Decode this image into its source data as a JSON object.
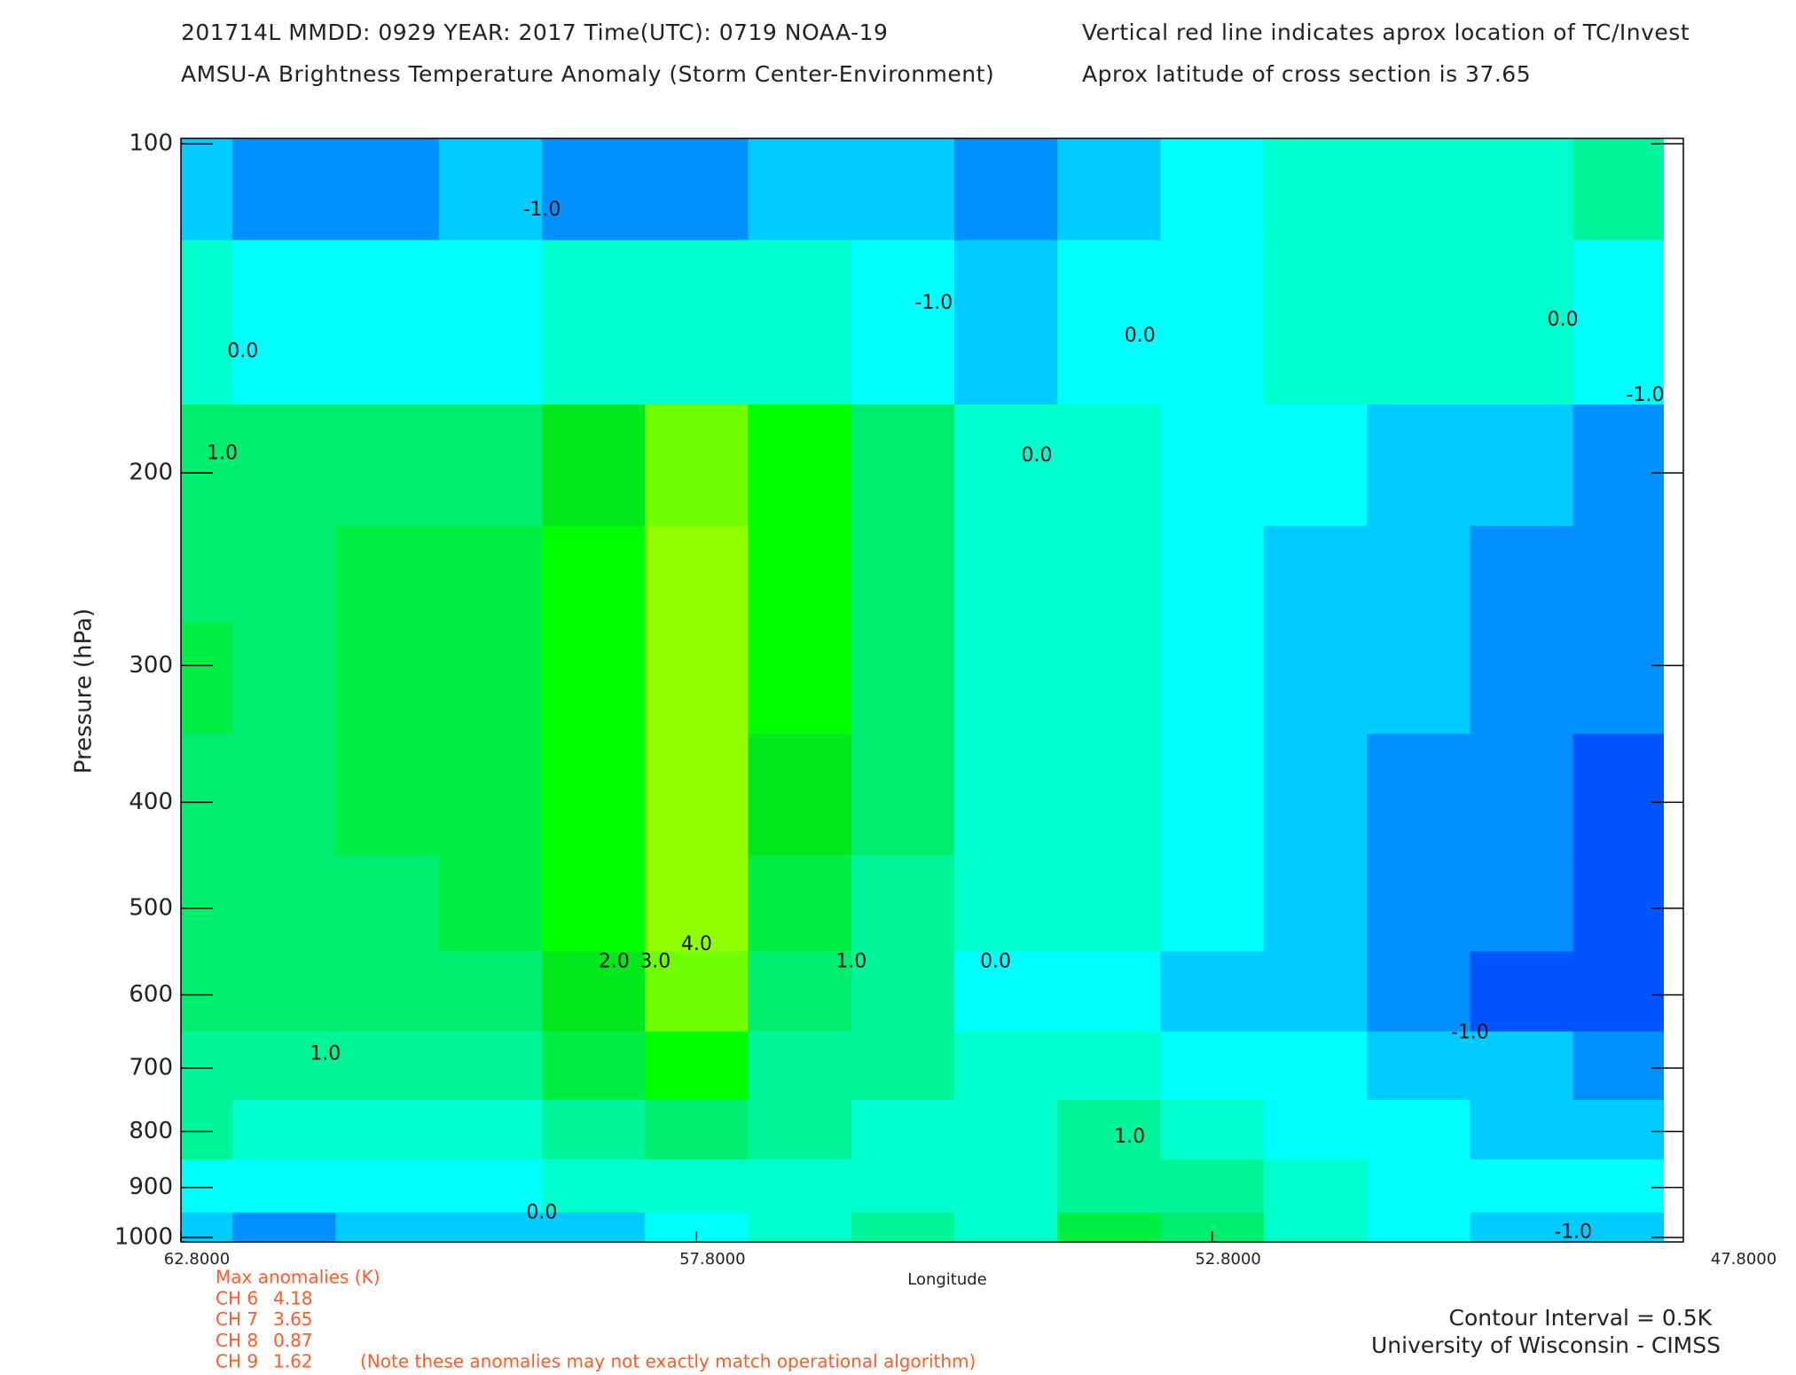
{
  "chart_data": {
    "type": "contour",
    "header": [
      "201714L  MMDD: 0929 YEAR: 2017 Time(UTC): 0719 NOAA-19",
      "AMSU-A Brightness Temperature Anomaly (Storm Center-Environment)",
      "Vertical red line indicates aprox location of TC/Invest",
      "Aprox latitude of cross section is 37.65"
    ],
    "x_label": "Longitude",
    "y_label": "Pressure (hPa)",
    "xlim": [
      62.8,
      47.8
    ],
    "xticks": [
      {
        "value": 62.8,
        "label": "62.8000"
      },
      {
        "value": 57.8,
        "label": "57.8000"
      },
      {
        "value": 52.8,
        "label": "52.8000"
      },
      {
        "value": 47.8,
        "label": "47.8000"
      }
    ],
    "ylim": [
      1000,
      100
    ],
    "yticks": [
      100,
      200,
      300,
      400,
      500,
      600,
      700,
      800,
      900,
      1000
    ],
    "ylog": true,
    "x": [
      62.8,
      61.8,
      60.8,
      59.8,
      58.8,
      57.8,
      56.8,
      55.8,
      54.8,
      53.8,
      52.8,
      51.8,
      50.8,
      49.8,
      48.8
    ],
    "y": [
      100,
      150,
      200,
      250,
      300,
      400,
      500,
      600,
      700,
      800,
      900,
      1000
    ],
    "z": [
      [
        -0.8,
        0,
        1.0,
        1.2,
        1.5,
        1.4,
        1.3,
        1.2,
        0.8,
        0.5,
        -0.3,
        -1.0
      ],
      [
        -1.2,
        -0.3,
        1.2,
        1.3,
        1.3,
        1.2,
        1.2,
        1.0,
        0.8,
        0.4,
        -0.4,
        -1.1
      ],
      [
        -1.1,
        -0.2,
        1.1,
        1.6,
        1.7,
        1.5,
        1.2,
        1.0,
        0.7,
        0.3,
        -0.3,
        -0.9
      ],
      [
        -1.0,
        -0.1,
        1.2,
        1.7,
        1.8,
        1.7,
        1.5,
        1.2,
        0.8,
        0.4,
        -0.2,
        -0.8
      ],
      [
        -1.2,
        0.1,
        2.2,
        2.6,
        2.7,
        2.8,
        2.6,
        2.2,
        1.5,
        0.8,
        0.0,
        -0.6
      ],
      [
        -1.1,
        0.3,
        3.8,
        4.0,
        4.1,
        4.2,
        4.1,
        3.5,
        2.5,
        1.4,
        0.4,
        -0.3
      ],
      [
        -0.9,
        0.2,
        2.8,
        2.7,
        2.5,
        2.0,
        1.7,
        1.3,
        0.9,
        0.6,
        0.3,
        0.2
      ],
      [
        -1.0,
        -0.3,
        1.2,
        1.2,
        1.1,
        1.0,
        0.9,
        0.7,
        0.5,
        0.4,
        0.3,
        0.6
      ],
      [
        -1.2,
        -0.7,
        0.3,
        0.4,
        0.4,
        0.3,
        0.1,
        -0.2,
        0.2,
        0.3,
        0.3,
        0.3
      ],
      [
        -1.0,
        -0.4,
        0.2,
        0.3,
        0.3,
        0.2,
        0.0,
        -0.3,
        0.0,
        0.6,
        0.9,
        1.5
      ],
      [
        -0.4,
        -0.2,
        -0.3,
        -0.4,
        -0.3,
        -0.2,
        -0.4,
        -0.6,
        -0.4,
        0.0,
        0.6,
        1.0
      ],
      [
        0.2,
        0.4,
        -0.2,
        -0.6,
        -0.6,
        -0.6,
        -0.6,
        -0.9,
        -0.5,
        -0.2,
        0.0,
        0.1
      ],
      [
        0.3,
        0.3,
        -0.6,
        -1.0,
        -1.0,
        -1.1,
        -1.1,
        -1.1,
        -0.7,
        -0.4,
        -0.2,
        -0.4
      ],
      [
        0.3,
        0.2,
        -0.7,
        -1.2,
        -1.2,
        -1.2,
        -1.4,
        -1.7,
        -1.0,
        -0.6,
        -0.3,
        -0.7
      ],
      [
        0.6,
        -0.2,
        -1.1,
        -1.3,
        -1.4,
        -1.6,
        -1.9,
        -1.8,
        -1.1,
        -0.7,
        -0.4,
        -0.9
      ]
    ],
    "levels": [
      -1.5,
      -1,
      -0.5,
      0,
      0.5,
      1,
      1.5,
      2,
      2.5,
      3,
      3.5,
      4
    ],
    "colors": [
      "#0055ff",
      "#0090ff",
      "#00ccff",
      "#00ffff",
      "#00ffcc",
      "#00f59a",
      "#00ee70",
      "#00ee44",
      "#00e81c",
      "#00ff00",
      "#40ff00",
      "#70ff00",
      "#90ff00"
    ],
    "contour_labels": [
      {
        "label": "-1.0",
        "lon": 59.3,
        "p": 115
      },
      {
        "label": "0.0",
        "lon": 62.2,
        "p": 155
      },
      {
        "label": "1.0",
        "lon": 62.4,
        "p": 192
      },
      {
        "label": "-1.0",
        "lon": 55.5,
        "p": 140
      },
      {
        "label": "0.0",
        "lon": 54.5,
        "p": 193
      },
      {
        "label": "0.0",
        "lon": 53.5,
        "p": 150
      },
      {
        "label": "0.0",
        "lon": 49.4,
        "p": 145
      },
      {
        "label": "-1.0",
        "lon": 48.6,
        "p": 170
      },
      {
        "label": "2.0",
        "lon": 58.6,
        "p": 560
      },
      {
        "label": "3.0",
        "lon": 58.2,
        "p": 560
      },
      {
        "label": "4.0",
        "lon": 57.8,
        "p": 540
      },
      {
        "label": "1.0",
        "lon": 56.3,
        "p": 560
      },
      {
        "label": "0.0",
        "lon": 54.9,
        "p": 560
      },
      {
        "label": "1.0",
        "lon": 61.4,
        "p": 680
      },
      {
        "label": "-1.0",
        "lon": 50.3,
        "p": 650
      },
      {
        "label": "0.0",
        "lon": 59.3,
        "p": 950
      },
      {
        "label": "1.0",
        "lon": 53.6,
        "p": 810
      },
      {
        "label": "-1.0",
        "lon": 49.3,
        "p": 990
      }
    ],
    "max_anomalies_title": "Max anomalies (K)",
    "max_anomalies": [
      {
        "channel": "CH 6",
        "value": 4.18
      },
      {
        "channel": "CH 7",
        "value": 3.65
      },
      {
        "channel": "CH 8",
        "value": 0.87
      },
      {
        "channel": "CH 9",
        "value": 1.62
      }
    ],
    "note": "(Note these anomalies may not exactly match operational algorithm)",
    "footer": [
      "Contour Interval = 0.5K",
      "University of Wisconsin - CIMSS"
    ]
  }
}
